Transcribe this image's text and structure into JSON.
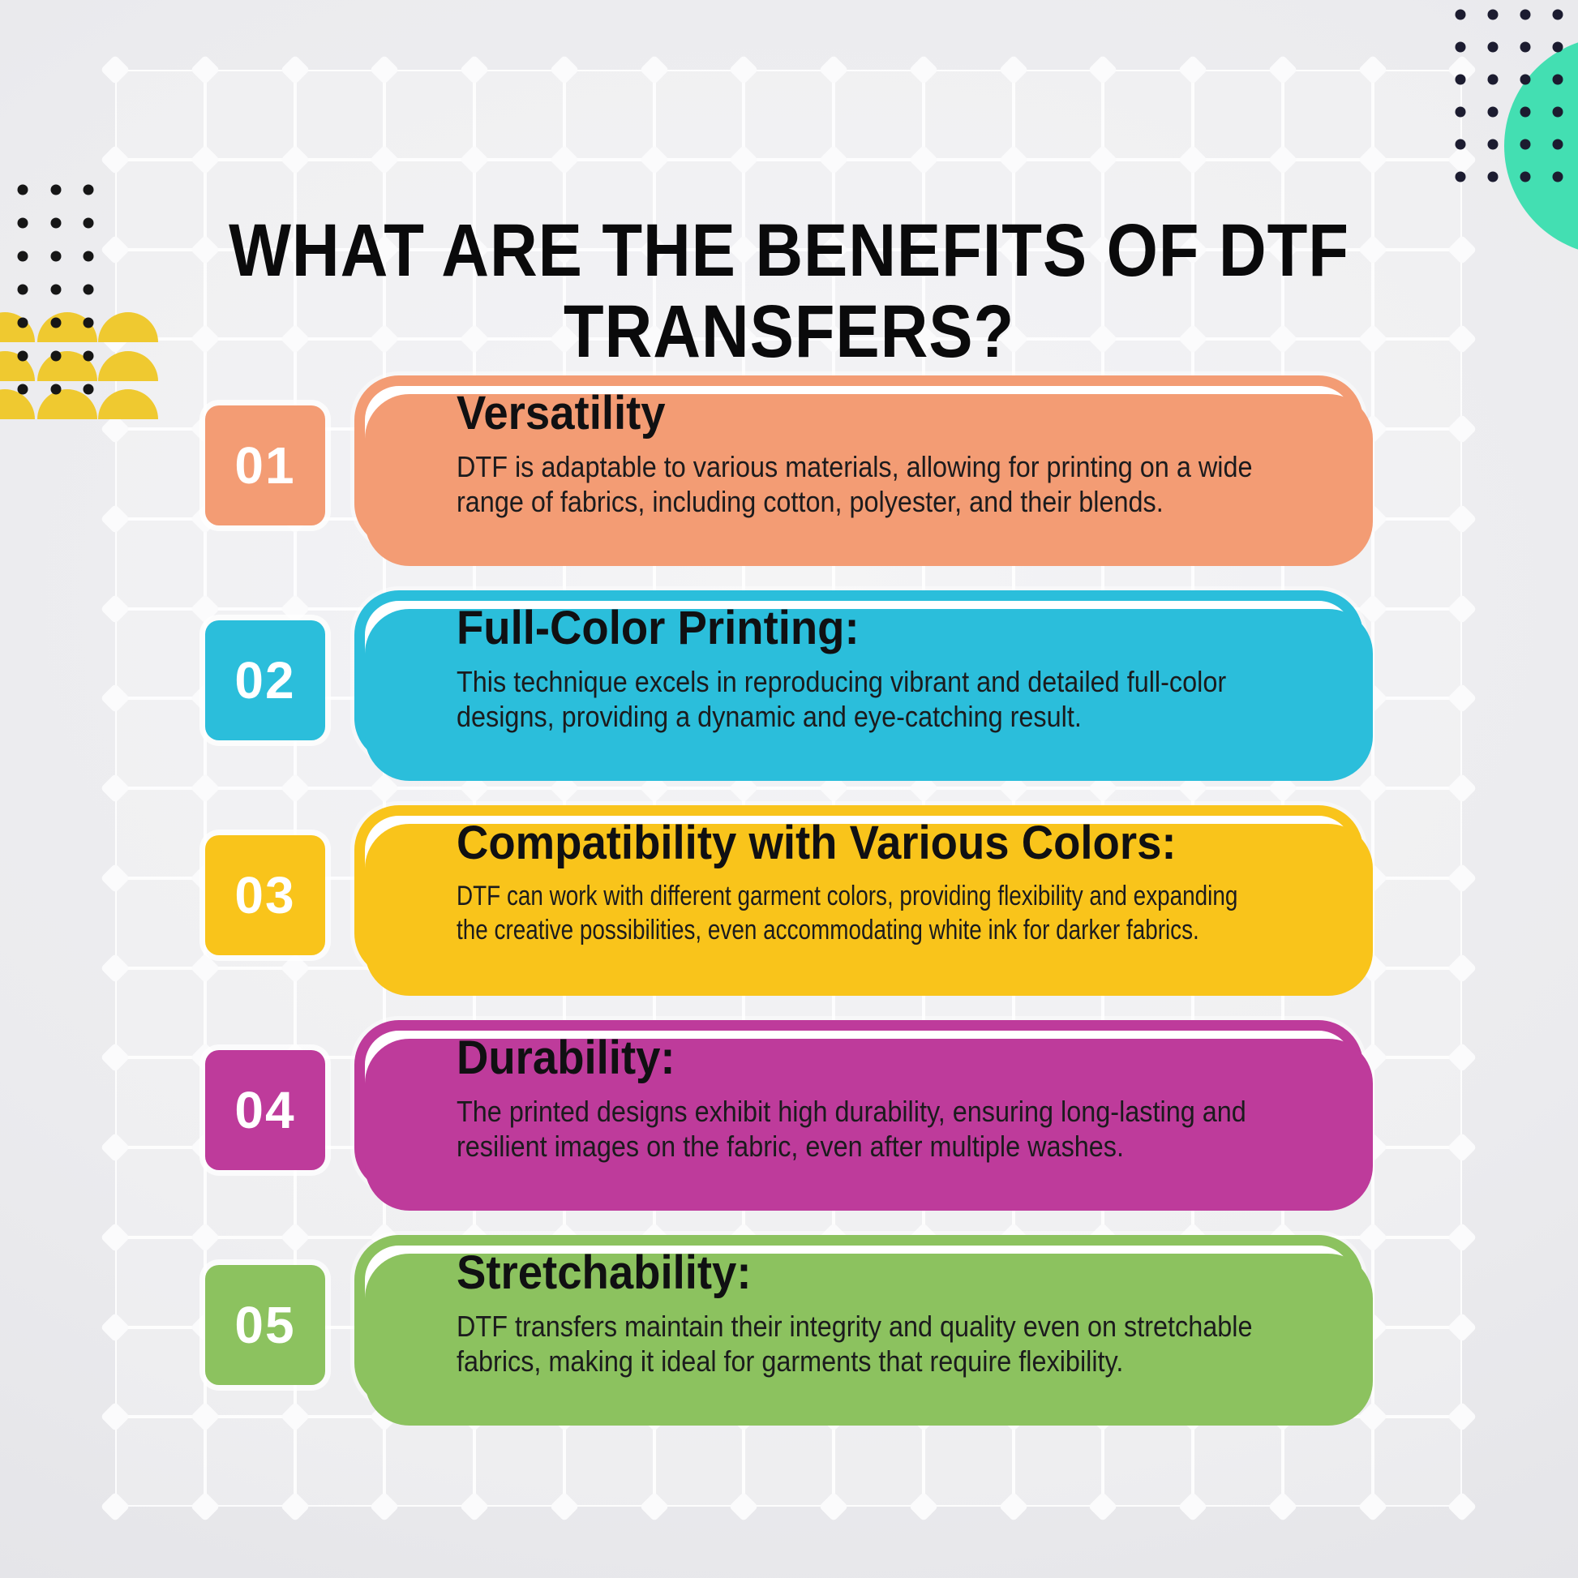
{
  "page": {
    "title": "WHAT ARE THE BENEFITS OF DTF TRANSFERS?"
  },
  "palette": {
    "teal_circle": "#43dfb2",
    "navy_dots": "#1c1c30",
    "black_dots": "#161616",
    "yellow_domes": "#efc930",
    "grid_line": "#ffffff"
  },
  "benefits": [
    {
      "number": "01",
      "accent": "#f39c74",
      "heading": "Versatility",
      "body": "DTF is adaptable to various materials, allowing for printing on a wide\nrange of fabrics, including cotton, polyester, and their blends."
    },
    {
      "number": "02",
      "accent": "#2bbedb",
      "heading": "Full-Color Printing:",
      "body": "This technique excels in reproducing vibrant and detailed full-color\ndesigns, providing a dynamic and eye-catching result."
    },
    {
      "number": "03",
      "accent": "#f9c41b",
      "heading": "Compatibility with Various Colors:",
      "body": "DTF can work with different garment colors, providing flexibility and expanding\nthe creative possibilities, even accommodating white ink for darker fabrics."
    },
    {
      "number": "04",
      "accent": "#be3b9b",
      "heading": "Durability:",
      "body": "The printed designs exhibit high durability, ensuring long-lasting and\nresilient images on the fabric, even after multiple washes."
    },
    {
      "number": "05",
      "accent": "#8cc25f",
      "heading": "Stretchability:",
      "body": "DTF transfers maintain their integrity and quality even on stretchable\nfabrics, making it ideal for garments that require flexibility."
    }
  ]
}
